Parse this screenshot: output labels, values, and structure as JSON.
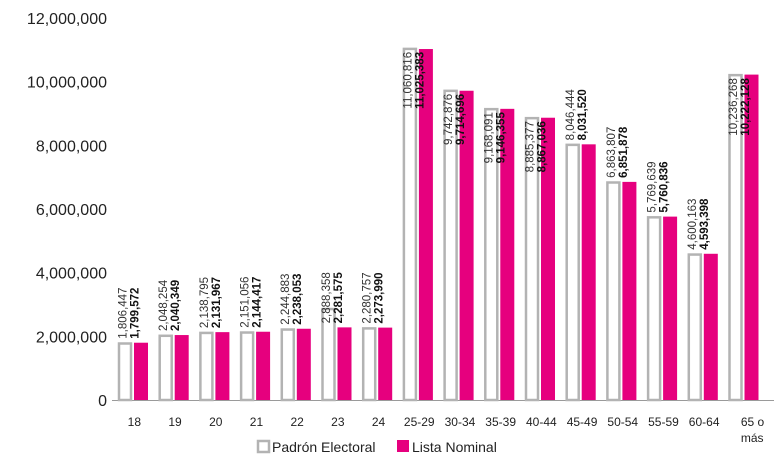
{
  "chart_data": {
    "type": "bar",
    "categories": [
      "18",
      "19",
      "20",
      "21",
      "22",
      "23",
      "24",
      "25-29",
      "30-34",
      "35-39",
      "40-44",
      "45-49",
      "50-54",
      "55-59",
      "60-64",
      "65 o más"
    ],
    "series": [
      {
        "name": "Padrón Electoral",
        "values": [
          1806447,
          2048254,
          2138795,
          2151056,
          2244883,
          2888358,
          2280757,
          11060816,
          9742876,
          9168091,
          8885377,
          8046444,
          6863807,
          5769639,
          4600163,
          10236268
        ],
        "labels": [
          "1,806,447",
          "2,048,254",
          "2,138,795",
          "2,151,056",
          "2,244,883",
          "2,888,358",
          "2,280,757",
          "11,060,816",
          "9,742,876",
          "9,168,091",
          "8,885,377",
          "8,046,444",
          "6,863,807",
          "5,769,639",
          "4,600,163",
          "10,236,268"
        ]
      },
      {
        "name": "Lista Nominal",
        "values": [
          1799572,
          2040349,
          2131967,
          2144417,
          2238053,
          2281575,
          2273990,
          11025383,
          9714696,
          9146355,
          8867036,
          8031520,
          6851878,
          5760836,
          4593398,
          10222128
        ],
        "labels": [
          "1,799,572",
          "2,040,349",
          "2,131,967",
          "2,144,417",
          "2,238,053",
          "2,281,575",
          "2,273,990",
          "11,025,383",
          "9,714,696",
          "9,146,355",
          "8,867,036",
          "8,031,520",
          "6,851,878",
          "5,760,836",
          "4,593,398",
          "10,222,128"
        ]
      }
    ],
    "y_ticks": [
      "0",
      "2,000,000",
      "4,000,000",
      "6,000,000",
      "8,000,000",
      "10,000,000",
      "12,000,000"
    ],
    "ylim": [
      0,
      12000000
    ],
    "grid": false,
    "legend_position": "bottom-center",
    "colors": {
      "padron_fill": "#ffffff",
      "padron_stroke": "#b3b3b3",
      "lista_fill": "#e6007e"
    }
  }
}
